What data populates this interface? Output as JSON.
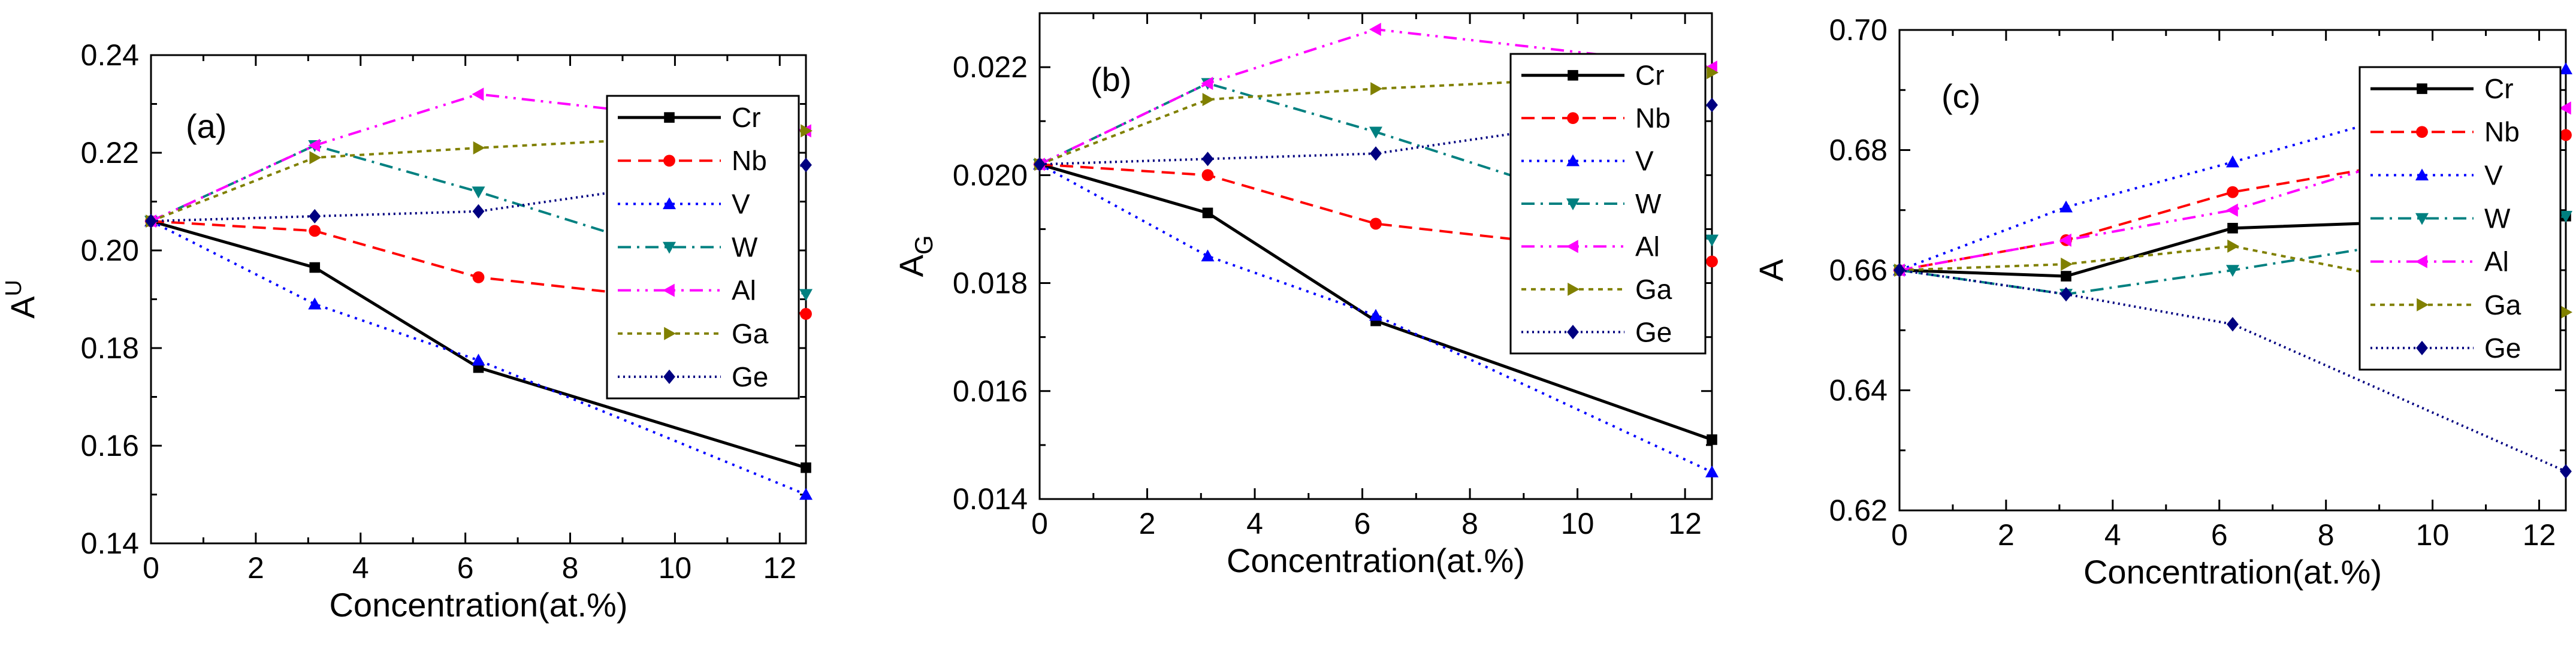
{
  "chart_data": [
    {
      "type": "line",
      "panel_label": "(a)",
      "xlabel": "Concentration(at.%)",
      "ylabel": "A",
      "ylabel_sup": "U",
      "xlim": [
        0,
        12.5
      ],
      "ylim": [
        0.14,
        0.24
      ],
      "xticks": [
        0,
        2,
        4,
        6,
        8,
        10,
        12
      ],
      "yticks": [
        "0.14",
        "0.16",
        "0.18",
        "0.20",
        "0.22",
        "0.24"
      ],
      "x": [
        0,
        3.125,
        6.25,
        12.5
      ],
      "series": [
        {
          "name": "Cr",
          "values": [
            0.206,
            0.1965,
            0.176,
            0.1555
          ],
          "color": "#000000",
          "dash": "",
          "marker": "square"
        },
        {
          "name": "Nb",
          "values": [
            0.206,
            0.204,
            0.1945,
            0.187
          ],
          "color": "#ff0000",
          "dash": "22,12",
          "marker": "circle"
        },
        {
          "name": "V",
          "values": [
            0.206,
            0.189,
            0.1775,
            0.15
          ],
          "color": "#0000ff",
          "dash": "4,9",
          "marker": "triangle-up"
        },
        {
          "name": "W",
          "values": [
            0.206,
            0.2215,
            0.212,
            0.191
          ],
          "color": "#008080",
          "dash": "22,10,4,10",
          "marker": "triangle-down"
        },
        {
          "name": "Al",
          "values": [
            0.206,
            0.2215,
            0.232,
            0.2245
          ],
          "color": "#ff00ff",
          "dash": "22,10,4,10,4,10",
          "marker": "triangle-left"
        },
        {
          "name": "Ga",
          "values": [
            0.206,
            0.219,
            0.221,
            0.2245
          ],
          "color": "#808000",
          "dash": "8,8",
          "marker": "triangle-right"
        },
        {
          "name": "Ge",
          "values": [
            0.206,
            0.207,
            0.208,
            0.2175
          ],
          "color": "#000080",
          "dash": "3,6",
          "marker": "diamond"
        }
      ]
    },
    {
      "type": "line",
      "panel_label": "(b)",
      "xlabel": "Concentration(at.%)",
      "ylabel": "A",
      "ylabel_sub": "G",
      "xlim": [
        0,
        12.5
      ],
      "ylim": [
        0.014,
        0.023
      ],
      "xticks": [
        0,
        2,
        4,
        6,
        8,
        10,
        12
      ],
      "yticks": [
        "0.014",
        "0.016",
        "0.018",
        "0.020",
        "0.022"
      ],
      "x": [
        0,
        3.125,
        6.25,
        12.5
      ],
      "series": [
        {
          "name": "Cr",
          "values": [
            0.0202,
            0.0193,
            0.0173,
            0.0151
          ],
          "color": "#000000",
          "dash": "",
          "marker": "square"
        },
        {
          "name": "Nb",
          "values": [
            0.0202,
            0.02,
            0.0191,
            0.0184
          ],
          "color": "#ff0000",
          "dash": "22,12",
          "marker": "circle"
        },
        {
          "name": "V",
          "values": [
            0.0202,
            0.0185,
            0.0174,
            0.0145
          ],
          "color": "#0000ff",
          "dash": "4,9",
          "marker": "triangle-up"
        },
        {
          "name": "W",
          "values": [
            0.0202,
            0.0217,
            0.0208,
            0.0188
          ],
          "color": "#008080",
          "dash": "22,10,4,10",
          "marker": "triangle-down"
        },
        {
          "name": "Al",
          "values": [
            0.0202,
            0.0217,
            0.0227,
            0.022
          ],
          "color": "#ff00ff",
          "dash": "22,10,4,10,4,10",
          "marker": "triangle-left"
        },
        {
          "name": "Ga",
          "values": [
            0.0202,
            0.0214,
            0.0216,
            0.0219
          ],
          "color": "#808000",
          "dash": "8,8",
          "marker": "triangle-right"
        },
        {
          "name": "Ge",
          "values": [
            0.0202,
            0.0203,
            0.0204,
            0.0213
          ],
          "color": "#000080",
          "dash": "3,6",
          "marker": "diamond"
        }
      ]
    },
    {
      "type": "line",
      "panel_label": "(c)",
      "xlabel": "Concentration(at.%)",
      "ylabel": "A",
      "xlim": [
        0,
        12.5
      ],
      "ylim": [
        0.62,
        0.7
      ],
      "xticks": [
        0,
        2,
        4,
        6,
        8,
        10,
        12
      ],
      "yticks": [
        "0.62",
        "0.64",
        "0.66",
        "0.68",
        "0.70"
      ],
      "x": [
        0,
        3.125,
        6.25,
        12.5
      ],
      "series": [
        {
          "name": "Cr",
          "values": [
            0.66,
            0.659,
            0.667,
            0.669
          ],
          "color": "#000000",
          "dash": "",
          "marker": "square"
        },
        {
          "name": "Nb",
          "values": [
            0.66,
            0.665,
            0.673,
            0.6825
          ],
          "color": "#ff0000",
          "dash": "22,12",
          "marker": "circle"
        },
        {
          "name": "V",
          "values": [
            0.66,
            0.6705,
            0.678,
            0.6935
          ],
          "color": "#0000ff",
          "dash": "4,9",
          "marker": "triangle-up"
        },
        {
          "name": "W",
          "values": [
            0.66,
            0.656,
            0.66,
            0.669
          ],
          "color": "#008080",
          "dash": "22,10,4,10",
          "marker": "triangle-down"
        },
        {
          "name": "Al",
          "values": [
            0.66,
            0.665,
            0.67,
            0.687
          ],
          "color": "#ff00ff",
          "dash": "22,10,4,10,4,10",
          "marker": "triangle-left"
        },
        {
          "name": "Ga",
          "values": [
            0.66,
            0.661,
            0.664,
            0.653
          ],
          "color": "#808000",
          "dash": "8,8",
          "marker": "triangle-right"
        },
        {
          "name": "Ge",
          "values": [
            0.66,
            0.656,
            0.651,
            0.6265
          ],
          "color": "#000080",
          "dash": "3,6",
          "marker": "diamond"
        }
      ]
    }
  ]
}
